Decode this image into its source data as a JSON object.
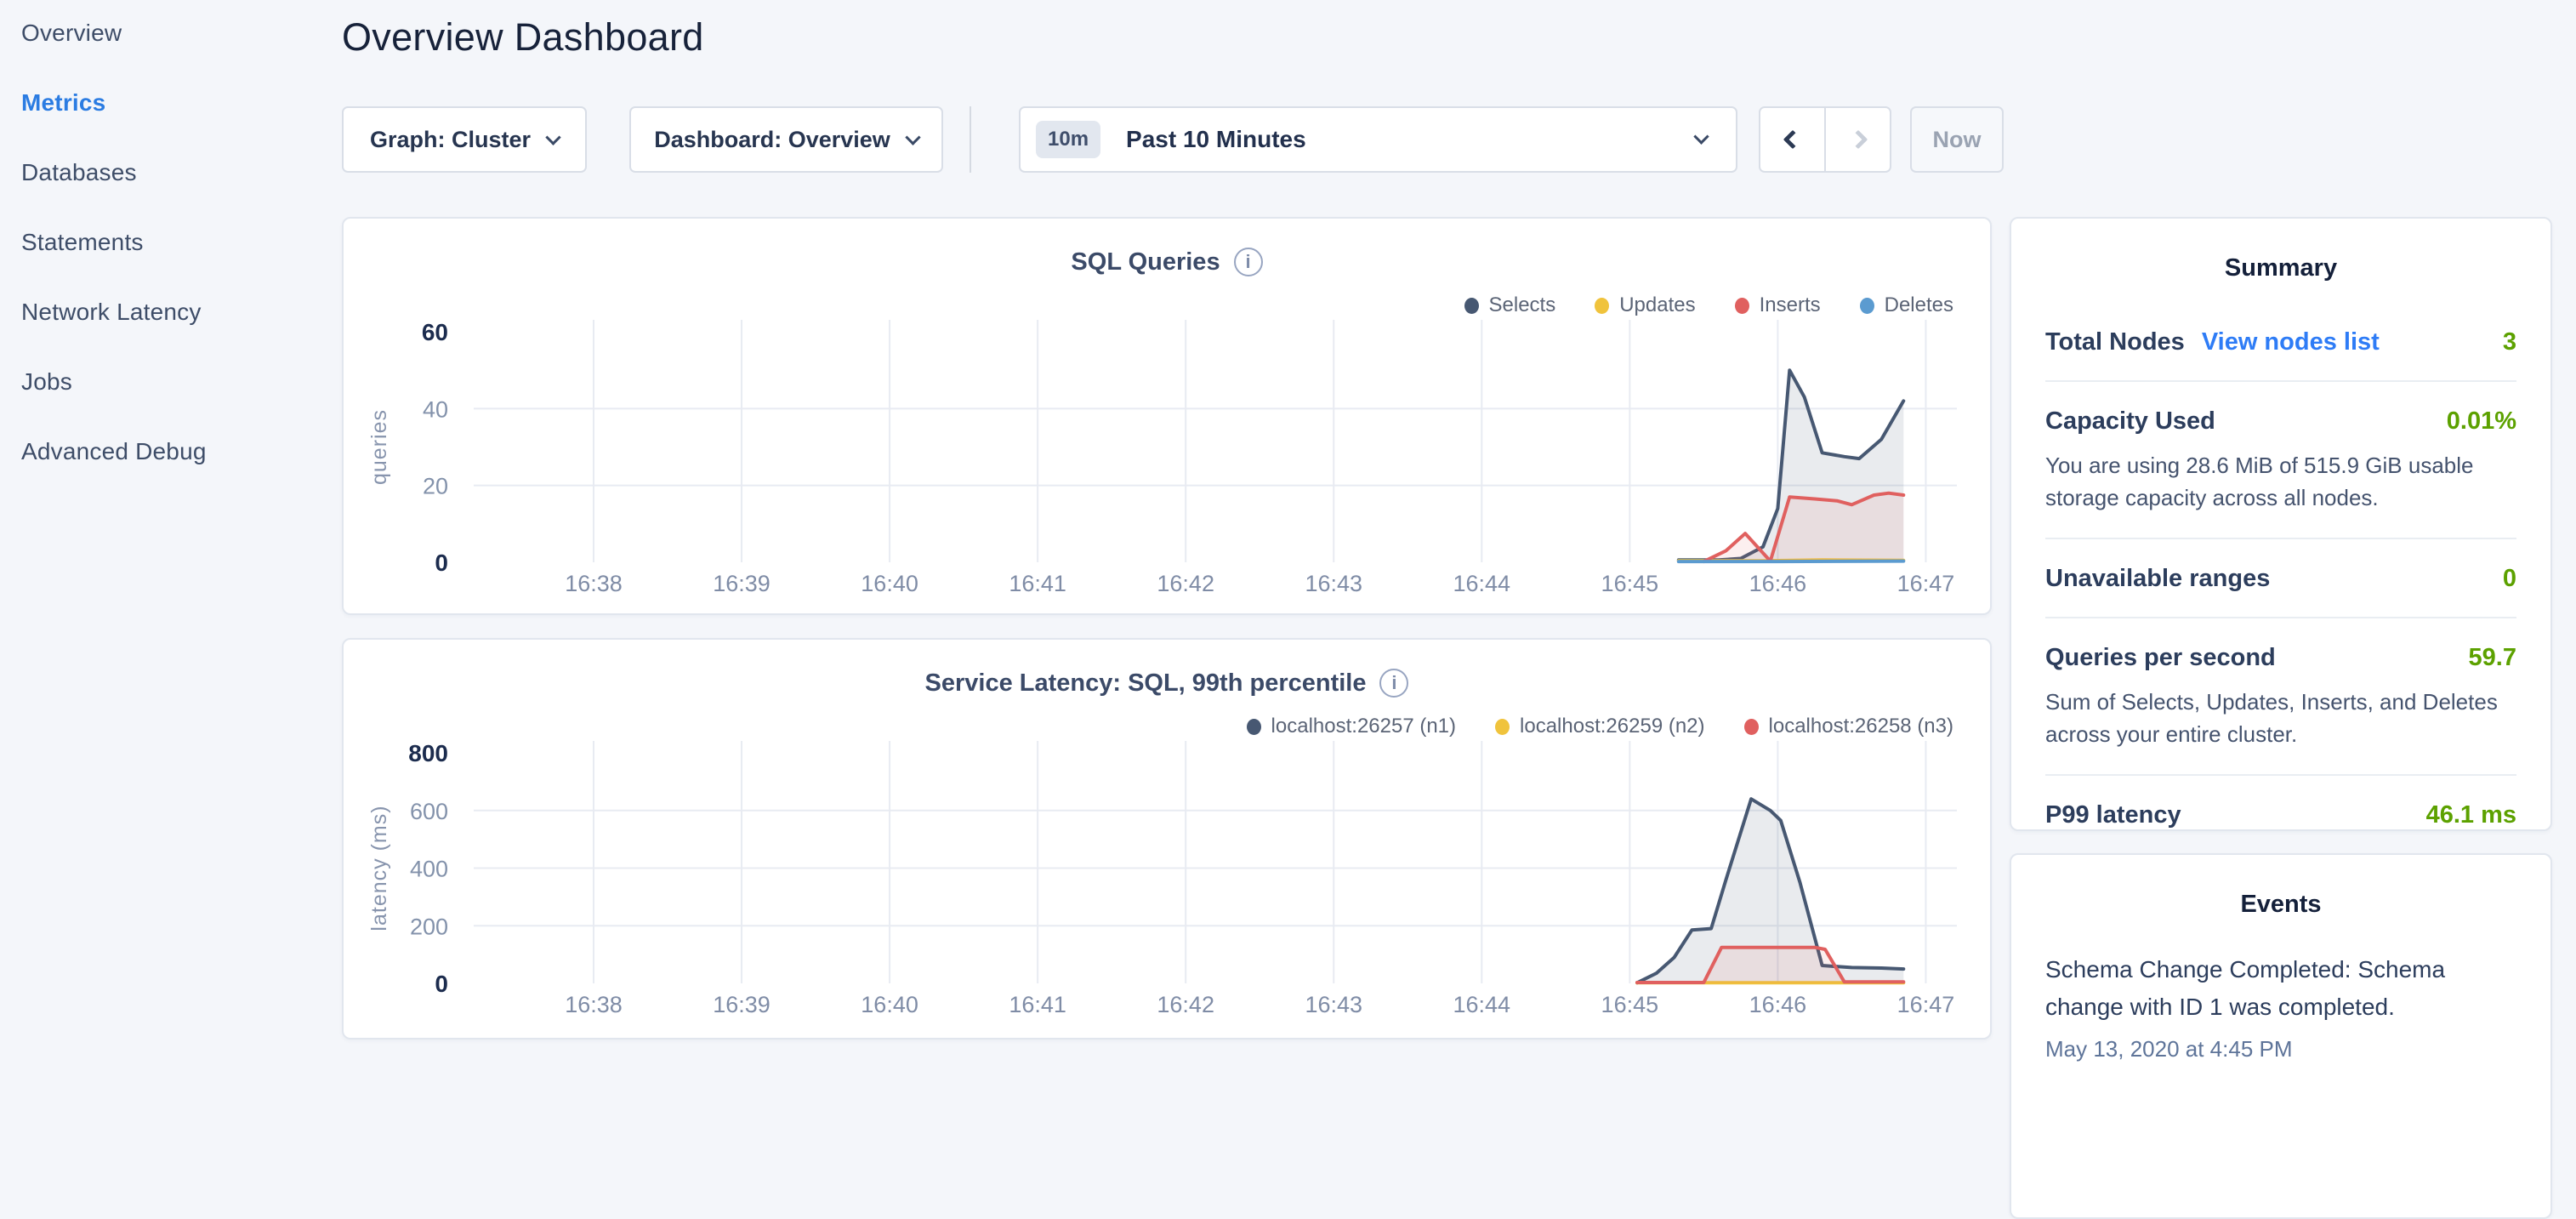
{
  "sidebar": {
    "items": [
      {
        "label": "Overview",
        "active": false
      },
      {
        "label": "Metrics",
        "active": true
      },
      {
        "label": "Databases",
        "active": false
      },
      {
        "label": "Statements",
        "active": false
      },
      {
        "label": "Network Latency",
        "active": false
      },
      {
        "label": "Jobs",
        "active": false
      },
      {
        "label": "Advanced Debug",
        "active": false
      }
    ]
  },
  "header": {
    "title": "Overview Dashboard"
  },
  "toolbar": {
    "graph_dropdown": "Graph: Cluster",
    "dashboard_dropdown": "Dashboard: Overview",
    "time_badge": "10m",
    "time_label": "Past 10 Minutes",
    "prev_icon": "chevron-left",
    "next_icon": "chevron-right",
    "now_label": "Now"
  },
  "summary": {
    "title": "Summary",
    "rows": [
      {
        "label": "Total Nodes",
        "link": "View nodes list",
        "value": "3"
      },
      {
        "label": "Capacity Used",
        "value": "0.01%",
        "description": "You are using 28.6 MiB of 515.9 GiB usable storage capacity across all nodes."
      },
      {
        "label": "Unavailable ranges",
        "value": "0"
      },
      {
        "label": "Queries per second",
        "value": "59.7",
        "description": "Sum of Selects, Updates, Inserts, and Deletes across your entire cluster."
      },
      {
        "label": "P99 latency",
        "value": "46.1 ms"
      }
    ],
    "value_color": "#5ca100",
    "link_color": "#2e7cf6"
  },
  "events": {
    "title": "Events",
    "items": [
      {
        "message": "Schema Change Completed: Schema change with ID 1 was completed.",
        "timestamp": "May 13, 2020 at 4:45 PM"
      }
    ]
  },
  "chart_data": [
    {
      "type": "line",
      "title": "SQL Queries",
      "xlabel": "",
      "ylabel": "queries",
      "ylim": [
        0,
        60
      ],
      "yticks": [
        0,
        20,
        40,
        60
      ],
      "xlim": [
        37.19,
        47.21
      ],
      "xticks": [
        {
          "v": 38,
          "label": "16:38"
        },
        {
          "v": 39,
          "label": "16:39"
        },
        {
          "v": 40,
          "label": "16:40"
        },
        {
          "v": 41,
          "label": "16:41"
        },
        {
          "v": 42,
          "label": "16:42"
        },
        {
          "v": 43,
          "label": "16:43"
        },
        {
          "v": 44,
          "label": "16:44"
        },
        {
          "v": 45,
          "label": "16:45"
        },
        {
          "v": 46,
          "label": "16:46"
        },
        {
          "v": 47,
          "label": "16:47"
        }
      ],
      "grid": true,
      "legend_position": "top-right",
      "series": [
        {
          "name": "Selects",
          "color": "#475872",
          "fill": "rgba(71,88,114,0.12)",
          "points": [
            [
              45.33,
              0.6
            ],
            [
              45.6,
              0.6
            ],
            [
              45.75,
              1
            ],
            [
              45.9,
              4
            ],
            [
              46.0,
              14
            ],
            [
              46.08,
              50
            ],
            [
              46.18,
              43
            ],
            [
              46.3,
              28.5
            ],
            [
              46.45,
              27.5
            ],
            [
              46.55,
              27
            ],
            [
              46.7,
              32
            ],
            [
              46.85,
              42
            ]
          ]
        },
        {
          "name": "Updates",
          "color": "#f0c33c",
          "fill": "none",
          "points": [
            [
              45.33,
              0.4
            ],
            [
              45.9,
              0.4
            ],
            [
              46.3,
              0.6
            ],
            [
              46.85,
              0.5
            ]
          ]
        },
        {
          "name": "Inserts",
          "color": "#e0605f",
          "fill": "rgba(224,96,95,0.10)",
          "points": [
            [
              45.5,
              0.2
            ],
            [
              45.65,
              3
            ],
            [
              45.78,
              7.5
            ],
            [
              45.95,
              0.3
            ],
            [
              46.08,
              17
            ],
            [
              46.25,
              16.5
            ],
            [
              46.4,
              16
            ],
            [
              46.5,
              15
            ],
            [
              46.65,
              17.5
            ],
            [
              46.75,
              18
            ],
            [
              46.85,
              17.5
            ]
          ]
        },
        {
          "name": "Deletes",
          "color": "#5b9bd0",
          "fill": "none",
          "points": [
            [
              45.33,
              0.2
            ],
            [
              46.0,
              0.2
            ],
            [
              46.85,
              0.3
            ]
          ]
        }
      ]
    },
    {
      "type": "line",
      "title": "Service Latency: SQL, 99th percentile",
      "xlabel": "",
      "ylabel": "latency (ms)",
      "ylim": [
        0,
        800
      ],
      "yticks": [
        0,
        200,
        400,
        600,
        800
      ],
      "xlim": [
        37.19,
        47.21
      ],
      "xticks": [
        {
          "v": 38,
          "label": "16:38"
        },
        {
          "v": 39,
          "label": "16:39"
        },
        {
          "v": 40,
          "label": "16:40"
        },
        {
          "v": 41,
          "label": "16:41"
        },
        {
          "v": 42,
          "label": "16:42"
        },
        {
          "v": 43,
          "label": "16:43"
        },
        {
          "v": 44,
          "label": "16:44"
        },
        {
          "v": 45,
          "label": "16:45"
        },
        {
          "v": 46,
          "label": "16:46"
        },
        {
          "v": 47,
          "label": "16:47"
        }
      ],
      "grid": true,
      "legend_position": "top-right",
      "series": [
        {
          "name": "localhost:26257 (n1)",
          "color": "#475872",
          "fill": "rgba(71,88,114,0.12)",
          "points": [
            [
              45.05,
              2
            ],
            [
              45.18,
              35
            ],
            [
              45.3,
              90
            ],
            [
              45.42,
              185
            ],
            [
              45.55,
              190
            ],
            [
              45.65,
              360
            ],
            [
              45.82,
              640
            ],
            [
              45.95,
              600
            ],
            [
              46.02,
              565
            ],
            [
              46.15,
              350
            ],
            [
              46.3,
              62
            ],
            [
              46.5,
              55
            ],
            [
              46.7,
              53
            ],
            [
              46.85,
              50
            ]
          ]
        },
        {
          "name": "localhost:26259 (n2)",
          "color": "#f0c33c",
          "fill": "none",
          "points": [
            [
              45.05,
              2
            ],
            [
              45.9,
              2
            ],
            [
              46.85,
              2
            ]
          ]
        },
        {
          "name": "localhost:26258 (n3)",
          "color": "#e0605f",
          "fill": "rgba(224,96,95,0.10)",
          "points": [
            [
              45.05,
              3
            ],
            [
              45.5,
              3
            ],
            [
              45.62,
              125
            ],
            [
              46.25,
              125
            ],
            [
              46.32,
              118
            ],
            [
              46.45,
              5
            ],
            [
              46.85,
              5
            ]
          ]
        }
      ]
    }
  ]
}
